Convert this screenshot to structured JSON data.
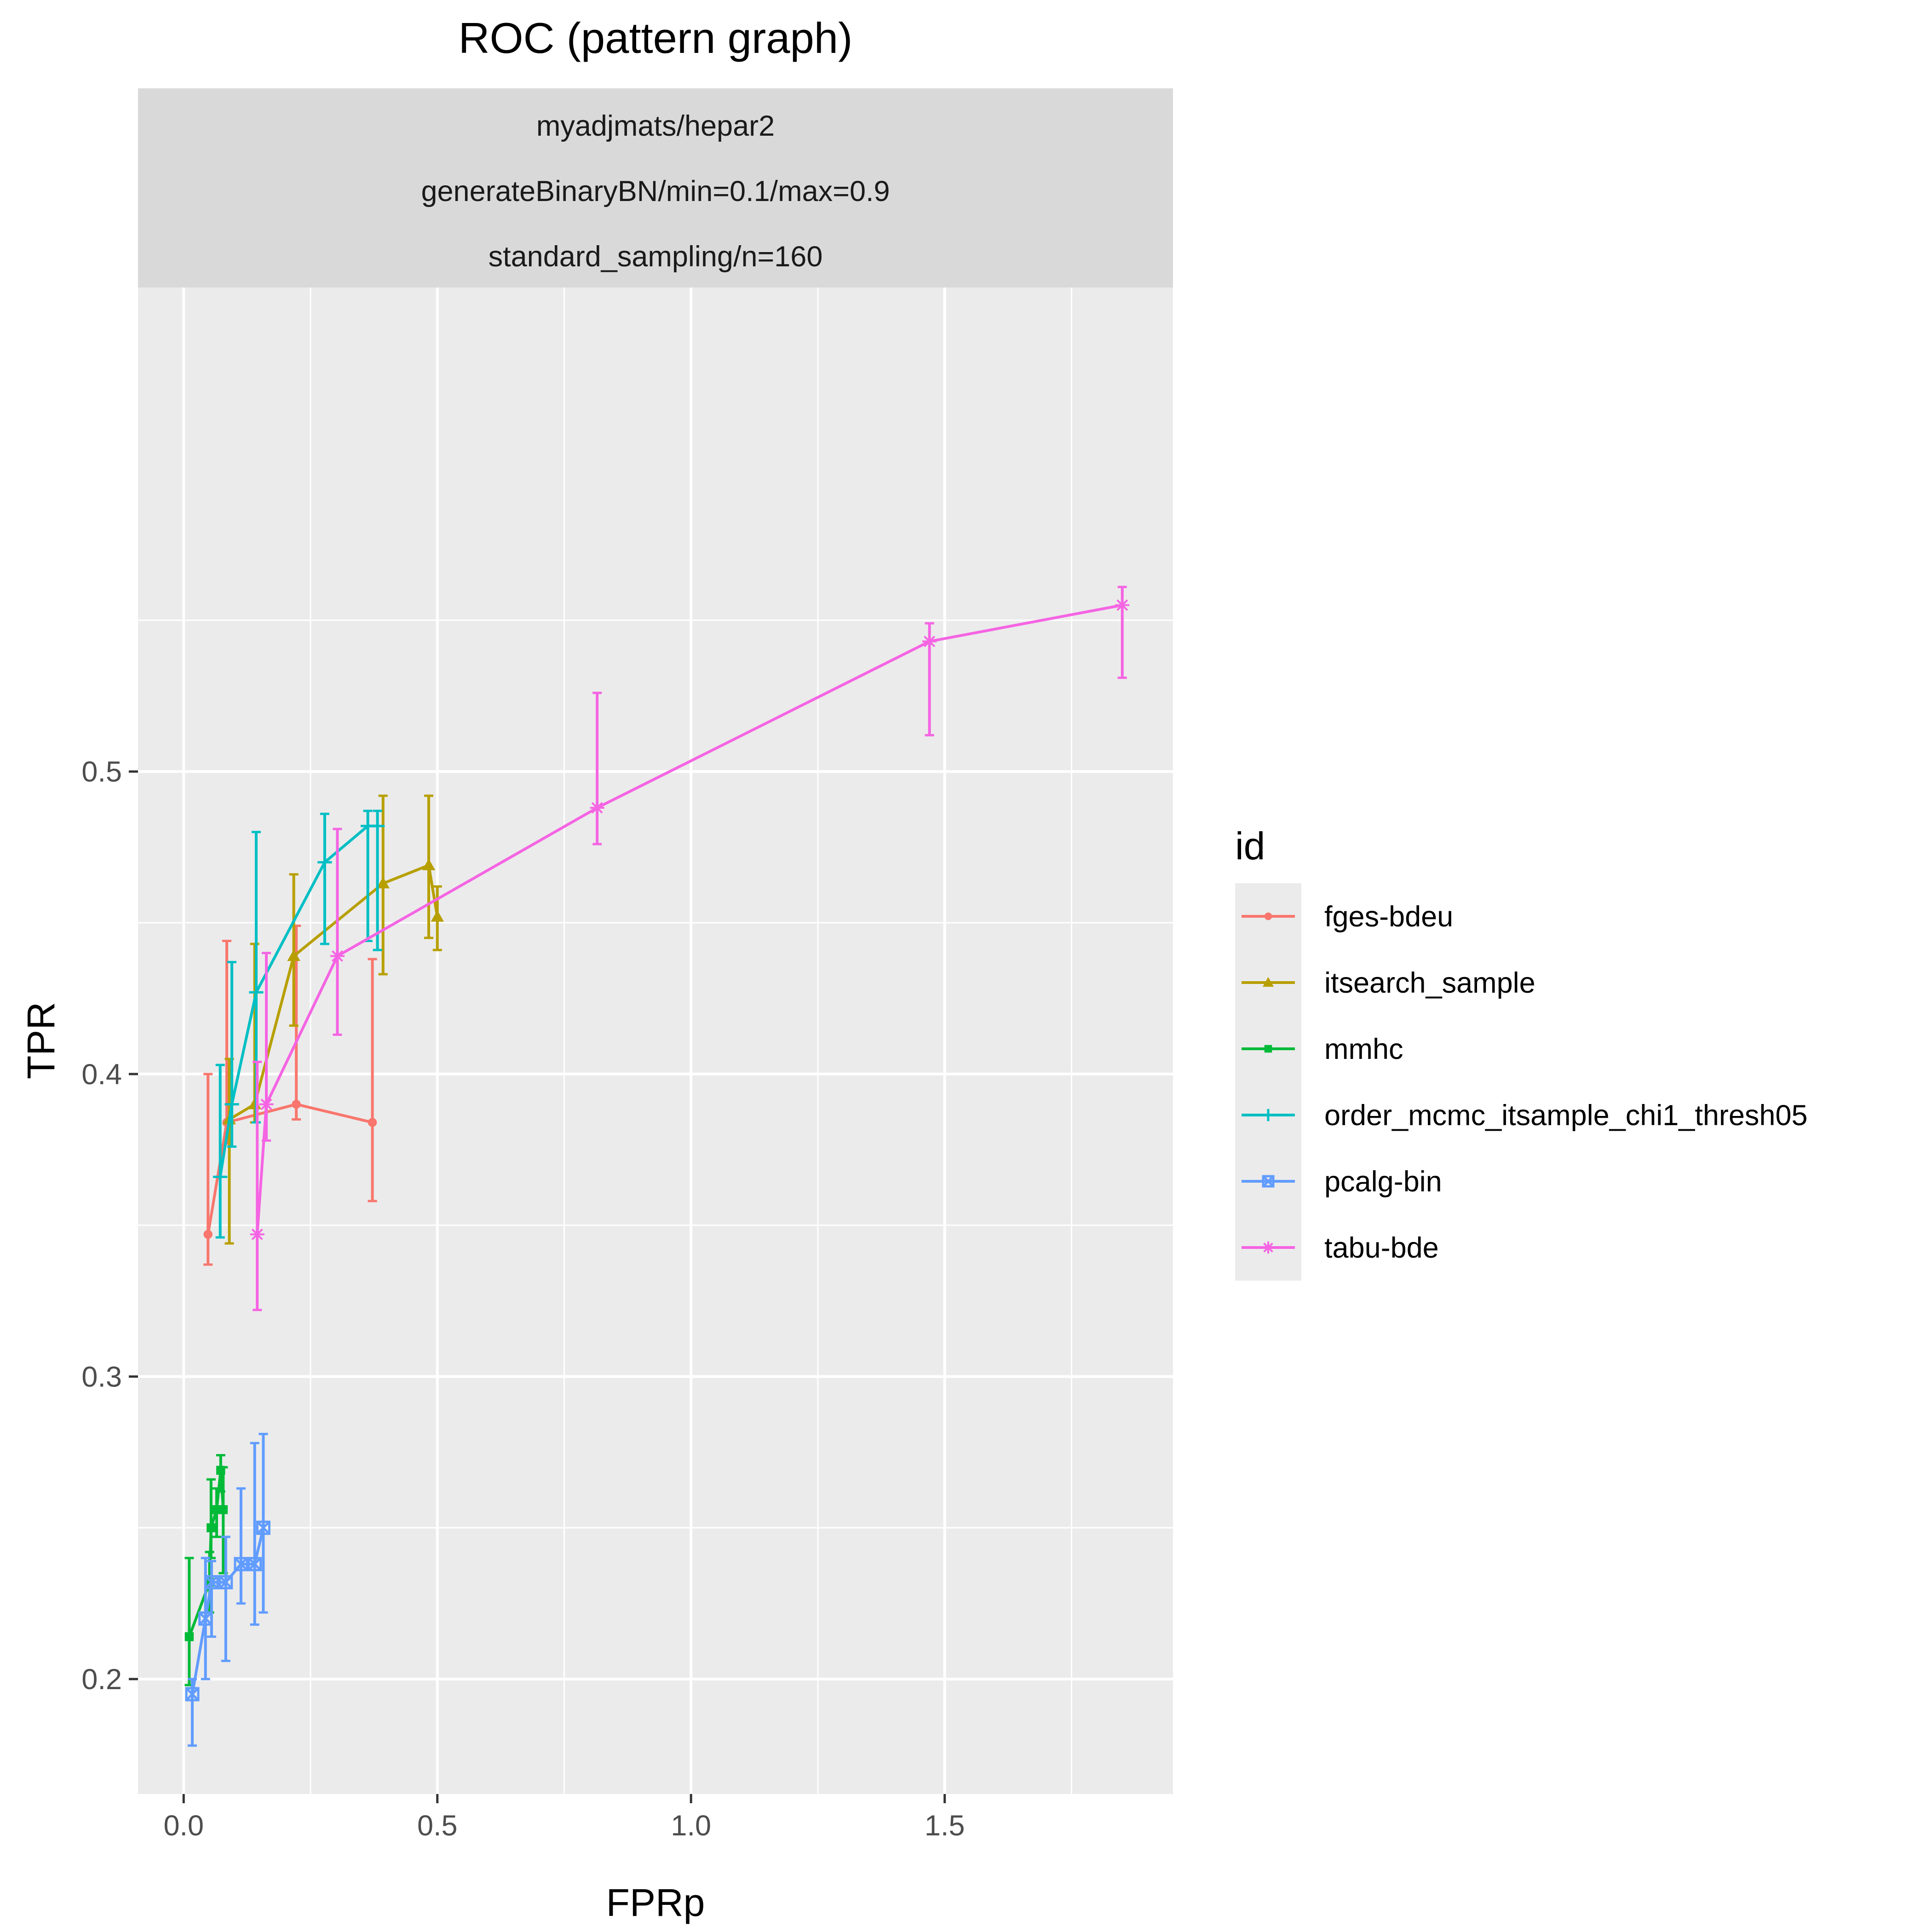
{
  "chart_data": {
    "type": "line",
    "title": "ROC (pattern graph)",
    "facet_strip": [
      "myadjmats/hepar2",
      "generateBinaryBN/min=0.1/max=0.9",
      "standard_sampling/n=160"
    ],
    "xlabel": "FPRp",
    "ylabel": "TPR",
    "xlim": [
      -0.09,
      1.95
    ],
    "ylim": [
      0.162,
      0.66
    ],
    "x_ticks": [
      0.0,
      0.5,
      1.0,
      1.5
    ],
    "x_tick_labels": [
      "0.0",
      "0.5",
      "1.0",
      "1.5"
    ],
    "y_ticks": [
      0.2,
      0.3,
      0.4,
      0.5
    ],
    "y_tick_labels": [
      "0.2",
      "0.3",
      "0.4",
      "0.5"
    ],
    "grid": true,
    "legend": {
      "title": "id",
      "placement": "right"
    },
    "series": [
      {
        "name": "fges-bdeu",
        "color": "#F8766D",
        "marker": "circle",
        "points": [
          {
            "x": 0.048,
            "y": 0.347,
            "ymin": 0.337,
            "ymax": 0.4
          },
          {
            "x": 0.085,
            "y": 0.384,
            "ymin": 0.377,
            "ymax": 0.444
          },
          {
            "x": 0.222,
            "y": 0.39,
            "ymin": 0.385,
            "ymax": 0.449
          },
          {
            "x": 0.372,
            "y": 0.384,
            "ymin": 0.358,
            "ymax": 0.438
          }
        ]
      },
      {
        "name": "itsearch_sample",
        "color": "#B79F00",
        "marker": "triangle",
        "points": [
          {
            "x": 0.09,
            "y": 0.385,
            "ymin": 0.344,
            "ymax": 0.405
          },
          {
            "x": 0.14,
            "y": 0.39,
            "ymin": 0.384,
            "ymax": 0.443
          },
          {
            "x": 0.217,
            "y": 0.439,
            "ymin": 0.416,
            "ymax": 0.466
          },
          {
            "x": 0.393,
            "y": 0.463,
            "ymin": 0.433,
            "ymax": 0.492
          },
          {
            "x": 0.483,
            "y": 0.469,
            "ymin": 0.445,
            "ymax": 0.492
          },
          {
            "x": 0.5,
            "y": 0.452,
            "ymin": 0.441,
            "ymax": 0.462
          }
        ]
      },
      {
        "name": "mmhc",
        "color": "#00BA38",
        "marker": "square",
        "points": [
          {
            "x": 0.011,
            "y": 0.214,
            "ymin": 0.198,
            "ymax": 0.24
          },
          {
            "x": 0.051,
            "y": 0.232,
            "ymin": 0.222,
            "ymax": 0.242
          },
          {
            "x": 0.054,
            "y": 0.25,
            "ymin": 0.24,
            "ymax": 0.266
          },
          {
            "x": 0.065,
            "y": 0.256,
            "ymin": 0.247,
            "ymax": 0.263
          },
          {
            "x": 0.073,
            "y": 0.269,
            "ymin": 0.262,
            "ymax": 0.274
          },
          {
            "x": 0.078,
            "y": 0.256,
            "ymin": 0.235,
            "ymax": 0.27
          }
        ]
      },
      {
        "name": "order_mcmc_itsample_chi1_thresh05",
        "color": "#00BFC4",
        "marker": "plus",
        "points": [
          {
            "x": 0.072,
            "y": 0.366,
            "ymin": 0.346,
            "ymax": 0.403
          },
          {
            "x": 0.095,
            "y": 0.39,
            "ymin": 0.376,
            "ymax": 0.437
          },
          {
            "x": 0.143,
            "y": 0.427,
            "ymin": 0.384,
            "ymax": 0.48
          },
          {
            "x": 0.278,
            "y": 0.47,
            "ymin": 0.443,
            "ymax": 0.486
          },
          {
            "x": 0.363,
            "y": 0.482,
            "ymin": 0.444,
            "ymax": 0.487
          },
          {
            "x": 0.382,
            "y": 0.482,
            "ymin": 0.441,
            "ymax": 0.487
          }
        ]
      },
      {
        "name": "pcalg-bin",
        "color": "#619CFF",
        "marker": "boxx",
        "points": [
          {
            "x": 0.017,
            "y": 0.195,
            "ymin": 0.178,
            "ymax": 0.2
          },
          {
            "x": 0.043,
            "y": 0.22,
            "ymin": 0.2,
            "ymax": 0.24
          },
          {
            "x": 0.055,
            "y": 0.232,
            "ymin": 0.214,
            "ymax": 0.239
          },
          {
            "x": 0.083,
            "y": 0.232,
            "ymin": 0.206,
            "ymax": 0.247
          },
          {
            "x": 0.113,
            "y": 0.238,
            "ymin": 0.225,
            "ymax": 0.263
          },
          {
            "x": 0.14,
            "y": 0.238,
            "ymin": 0.218,
            "ymax": 0.278
          },
          {
            "x": 0.157,
            "y": 0.25,
            "ymin": 0.222,
            "ymax": 0.281
          }
        ]
      },
      {
        "name": "tabu-bde",
        "color": "#F564E3",
        "marker": "asterisk",
        "points": [
          {
            "x": 0.145,
            "y": 0.347,
            "ymin": 0.322,
            "ymax": 0.404
          },
          {
            "x": 0.163,
            "y": 0.39,
            "ymin": 0.378,
            "ymax": 0.44
          },
          {
            "x": 0.303,
            "y": 0.439,
            "ymin": 0.413,
            "ymax": 0.481
          },
          {
            "x": 0.815,
            "y": 0.488,
            "ymin": 0.476,
            "ymax": 0.526
          },
          {
            "x": 1.47,
            "y": 0.543,
            "ymin": 0.512,
            "ymax": 0.549
          },
          {
            "x": 1.85,
            "y": 0.555,
            "ymin": 0.531,
            "ymax": 0.561
          }
        ]
      }
    ]
  }
}
